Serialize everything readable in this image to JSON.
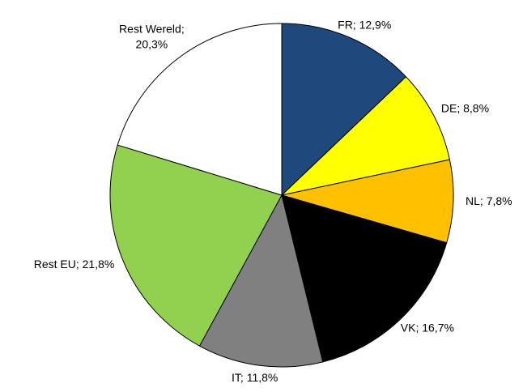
{
  "chart_data": {
    "type": "pie",
    "value_labels": [
      "FR; 12,9%",
      "DE; 8,8%",
      "NL; 7,8%",
      "VK; 16,7%",
      "IT; 11,8%",
      "Rest EU; 21,8%",
      "Rest Wereld; 20,3%"
    ],
    "values": [
      12.9,
      8.8,
      7.8,
      16.7,
      11.8,
      21.8,
      20.3
    ],
    "colors": [
      "#1f497d",
      "#ffff00",
      "#ffc000",
      "#000000",
      "#808080",
      "#92d050",
      "#ffffff"
    ]
  }
}
